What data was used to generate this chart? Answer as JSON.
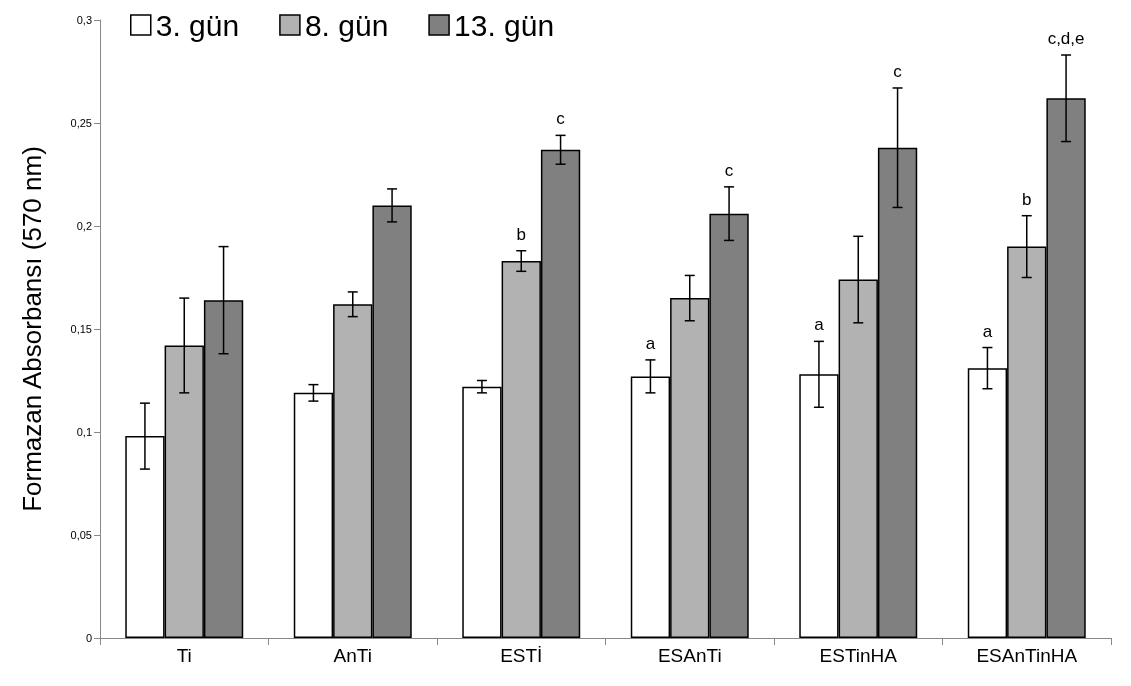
{
  "chart_data": {
    "type": "bar",
    "categories": [
      "Ti",
      "AnTi",
      "ESTİ",
      "ESAnTi",
      "ESTinHA",
      "ESAnTinHA"
    ],
    "ylabel": "Formazan Absorbansı (570 nm)",
    "series": [
      {
        "name": "3. gün",
        "color": "#ffffff",
        "values": [
          0.098,
          0.119,
          0.122,
          0.127,
          0.128,
          0.131
        ],
        "errors": [
          0.016,
          0.004,
          0.003,
          0.008,
          0.016,
          0.01
        ]
      },
      {
        "name": "8. gün",
        "color": "#b2b2b2",
        "values": [
          0.142,
          0.162,
          0.183,
          0.165,
          0.174,
          0.19
        ],
        "errors": [
          0.023,
          0.006,
          0.005,
          0.011,
          0.021,
          0.015
        ]
      },
      {
        "name": "13. gün",
        "color": "#808080",
        "values": [
          0.164,
          0.21,
          0.237,
          0.206,
          0.238,
          0.262
        ],
        "errors": [
          0.026,
          0.008,
          0.007,
          0.013,
          0.029,
          0.021
        ]
      }
    ],
    "ylim": [
      0,
      0.3
    ],
    "yticks": [
      {
        "value": 0,
        "label": "0"
      },
      {
        "value": 0.05,
        "label": "0,05"
      },
      {
        "value": 0.1,
        "label": "0,1"
      },
      {
        "value": 0.15,
        "label": "0,15"
      },
      {
        "value": 0.2,
        "label": "0,2"
      },
      {
        "value": 0.25,
        "label": "0,25"
      },
      {
        "value": 0.3,
        "label": "0,3"
      }
    ],
    "annotations": [
      "b",
      "c",
      "a",
      "c",
      "a",
      "c",
      "a",
      "b",
      "c,d,e"
    ],
    "grid": false,
    "legend": "top left"
  }
}
